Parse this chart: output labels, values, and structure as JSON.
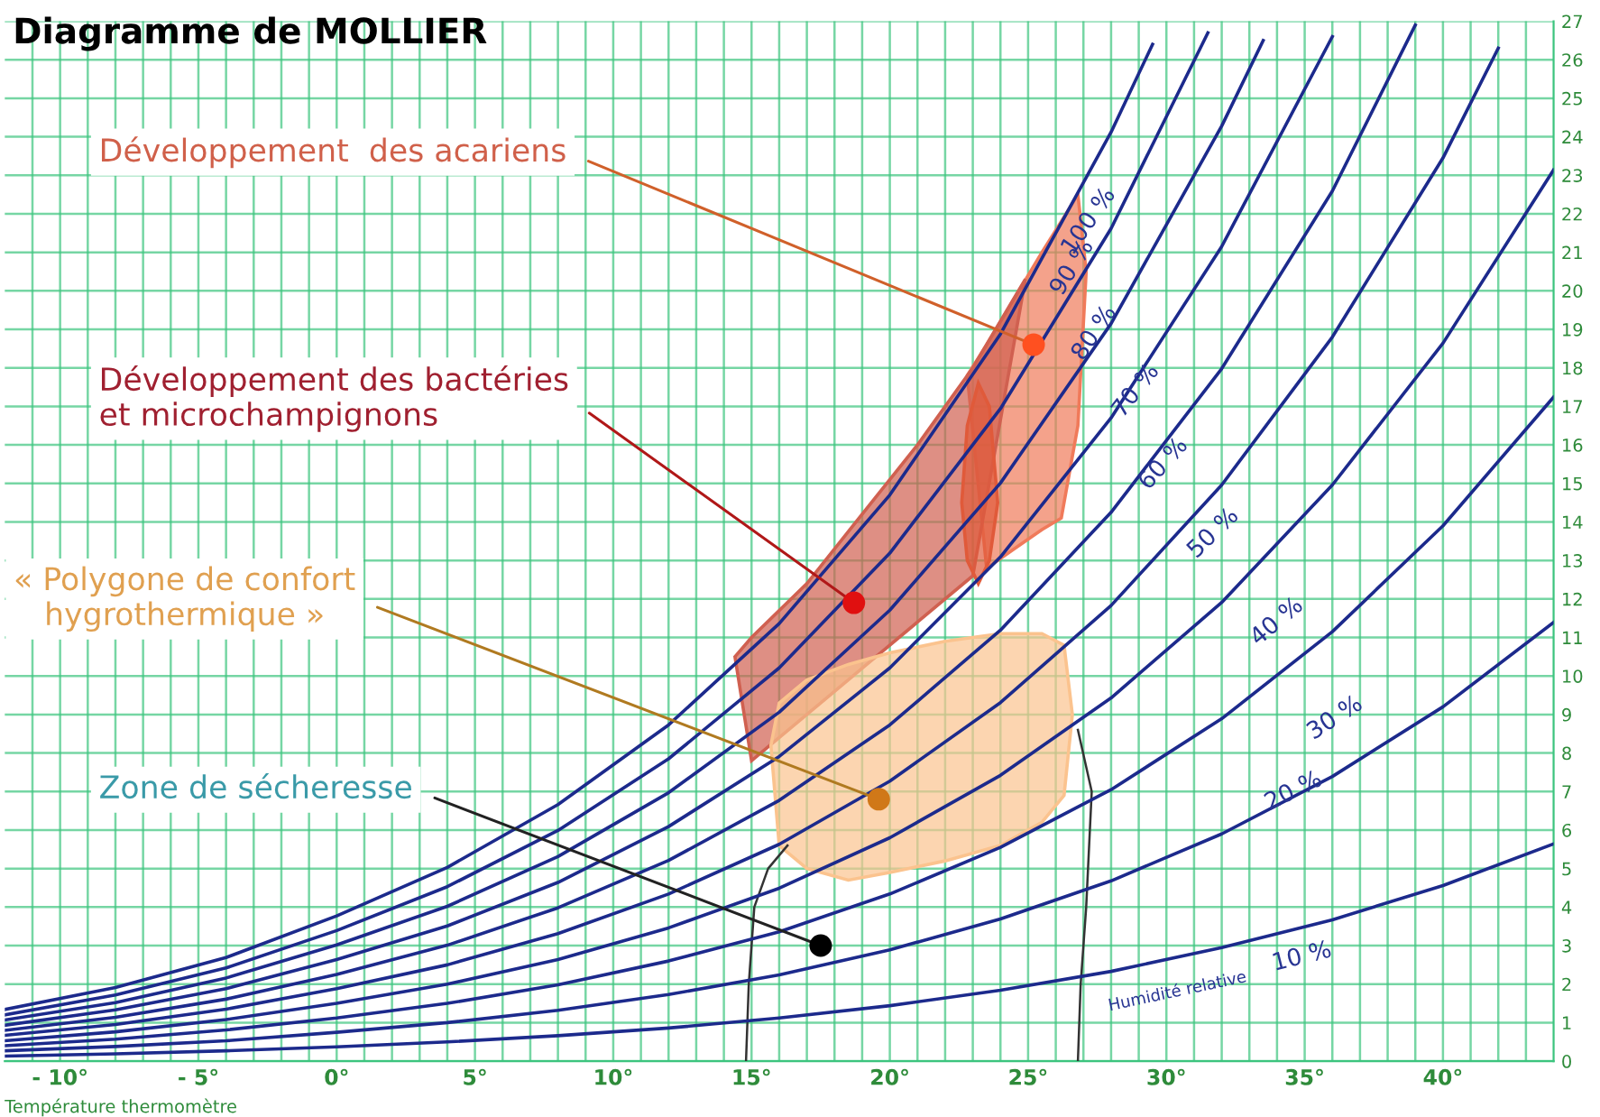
{
  "chart_data": {
    "type": "line",
    "title": "Diagramme de MOLLIER",
    "xlabel": "Température thermomètre",
    "xlim": [
      -12,
      44
    ],
    "ylim": [
      0,
      27
    ],
    "grid": true,
    "xticks": [
      {
        "value": -11,
        "label": null
      },
      {
        "value": -10,
        "label": "- 10°"
      },
      {
        "value": -9,
        "label": null
      },
      {
        "value": -8,
        "label": null
      },
      {
        "value": -7,
        "label": null
      },
      {
        "value": -6,
        "label": null
      },
      {
        "value": -5,
        "label": "- 5°"
      },
      {
        "value": -4,
        "label": null
      },
      {
        "value": -3,
        "label": null
      },
      {
        "value": -2,
        "label": null
      },
      {
        "value": -1,
        "label": null
      },
      {
        "value": 0,
        "label": "0°"
      },
      {
        "value": 1,
        "label": null
      },
      {
        "value": 2,
        "label": null
      },
      {
        "value": 3,
        "label": null
      },
      {
        "value": 4,
        "label": null
      },
      {
        "value": 5,
        "label": "5°"
      },
      {
        "value": 6,
        "label": null
      },
      {
        "value": 7,
        "label": null
      },
      {
        "value": 8,
        "label": null
      },
      {
        "value": 9,
        "label": null
      },
      {
        "value": 10,
        "label": "10°"
      },
      {
        "value": 11,
        "label": null
      },
      {
        "value": 12,
        "label": null
      },
      {
        "value": 13,
        "label": null
      },
      {
        "value": 14,
        "label": null
      },
      {
        "value": 15,
        "label": "15°"
      },
      {
        "value": 16,
        "label": null
      },
      {
        "value": 17,
        "label": null
      },
      {
        "value": 18,
        "label": null
      },
      {
        "value": 19,
        "label": null
      },
      {
        "value": 20,
        "label": "20°"
      },
      {
        "value": 21,
        "label": null
      },
      {
        "value": 22,
        "label": null
      },
      {
        "value": 23,
        "label": null
      },
      {
        "value": 24,
        "label": null
      },
      {
        "value": 25,
        "label": "25°"
      },
      {
        "value": 26,
        "label": null
      },
      {
        "value": 27,
        "label": null
      },
      {
        "value": 28,
        "label": null
      },
      {
        "value": 29,
        "label": null
      },
      {
        "value": 30,
        "label": "30°"
      },
      {
        "value": 31,
        "label": null
      },
      {
        "value": 32,
        "label": null
      },
      {
        "value": 33,
        "label": null
      },
      {
        "value": 34,
        "label": null
      },
      {
        "value": 35,
        "label": "35°"
      },
      {
        "value": 36,
        "label": null
      },
      {
        "value": 37,
        "label": null
      },
      {
        "value": 38,
        "label": null
      },
      {
        "value": 39,
        "label": null
      },
      {
        "value": 40,
        "label": "40°"
      },
      {
        "value": 41,
        "label": null
      },
      {
        "value": 42,
        "label": null
      },
      {
        "value": 43,
        "label": null
      }
    ],
    "yticks": [
      0,
      1,
      2,
      3,
      4,
      5,
      6,
      7,
      8,
      9,
      10,
      11,
      12,
      13,
      14,
      15,
      16,
      17,
      18,
      19,
      20,
      21,
      22,
      23,
      24,
      25,
      26,
      27
    ],
    "series": [
      {
        "type": "area",
        "color": "#f07a5a",
        "x": [
          22.8,
          23.5,
          24.5,
          25.5,
          26.2,
          26.8,
          27.1,
          26.8,
          26.2,
          25.5,
          24.5,
          23.5
        ],
        "values": [
          17.8,
          18.6,
          19.8,
          21.0,
          21.8,
          22.5,
          20.5,
          16.5,
          14.1,
          13.8,
          13.3,
          12.8
        ]
      },
      {
        "type": "area",
        "color": "#d06050",
        "x": [
          14.4,
          15,
          17,
          19,
          21,
          23,
          24.9,
          23,
          21,
          19,
          17,
          15
        ],
        "values": [
          10.5,
          11.0,
          12.4,
          14.2,
          16.0,
          18.0,
          20.3,
          12.6,
          11.4,
          10.2,
          9.0,
          7.8
        ]
      },
      {
        "type": "area",
        "color": "#e05a3a",
        "x": [
          22.6,
          22.8,
          23.2,
          23.6,
          23.9,
          23.6,
          23.2,
          22.8
        ],
        "values": [
          14.5,
          16.5,
          17.6,
          17.0,
          14.5,
          13.0,
          12.4,
          13.0
        ]
      },
      {
        "type": "area",
        "color": "#fbc38e",
        "x": [
          15.7,
          16.0,
          17,
          18.5,
          20,
          22,
          24,
          25.5,
          26.3,
          26.6,
          26.3,
          25.5,
          24,
          22,
          20,
          18.5,
          17,
          16.0
        ],
        "values": [
          8.2,
          9.3,
          9.9,
          10.3,
          10.6,
          10.9,
          11.1,
          11.1,
          10.8,
          9.0,
          6.9,
          6.2,
          5.6,
          5.2,
          4.9,
          4.7,
          5.0,
          5.6
        ]
      },
      {
        "color": "#333333",
        "x": [
          14.8,
          14.9,
          15.1,
          15.6,
          16.3
        ],
        "values": [
          0,
          2.0,
          4.0,
          5.0,
          5.6
        ]
      },
      {
        "color": "#333333",
        "x": [
          26.8,
          26.9,
          27.1,
          27.3,
          26.8
        ],
        "values": [
          0,
          2.0,
          4.0,
          7.0,
          8.6
        ]
      },
      {
        "type": "line",
        "color": "#1c2a8c",
        "x": [
          -12,
          -8,
          -4,
          0,
          4,
          8,
          12,
          16,
          20,
          24,
          28,
          29.5
        ],
        "values": [
          1.34,
          1.91,
          2.69,
          3.77,
          5.03,
          6.66,
          8.73,
          11.36,
          14.7,
          18.88,
          24.12,
          26.4
        ]
      },
      {
        "type": "line",
        "color": "#1c2a8c",
        "x": [
          -12,
          -8,
          -4,
          0,
          4,
          8,
          12,
          16,
          20,
          24,
          28,
          31.5
        ],
        "values": [
          1.2,
          1.72,
          2.42,
          3.39,
          4.53,
          5.99,
          7.85,
          10.21,
          13.19,
          16.94,
          21.62,
          26.7
        ]
      },
      {
        "type": "line",
        "color": "#1c2a8c",
        "x": [
          -12,
          -8,
          -4,
          0,
          4,
          8,
          12,
          16,
          20,
          24,
          28,
          32,
          33.5
        ],
        "values": [
          1.07,
          1.52,
          2.16,
          3.02,
          4.02,
          5.31,
          6.97,
          9.06,
          11.71,
          15.01,
          19.15,
          24.28,
          26.5
        ]
      },
      {
        "type": "line",
        "color": "#1c2a8c",
        "x": [
          -12,
          -8,
          -4,
          0,
          4,
          8,
          12,
          16,
          20,
          24,
          28,
          32,
          36
        ],
        "values": [
          0.93,
          1.33,
          1.88,
          2.64,
          3.51,
          4.64,
          6.09,
          7.91,
          10.21,
          13.09,
          16.7,
          21.15,
          26.6
        ]
      },
      {
        "type": "line",
        "color": "#1c2a8c",
        "x": [
          -12,
          -8,
          -4,
          0,
          4,
          8,
          12,
          16,
          20,
          24,
          28,
          32,
          36,
          39
        ],
        "values": [
          0.8,
          1.14,
          1.61,
          2.25,
          3.01,
          3.98,
          5.21,
          6.77,
          8.73,
          11.19,
          14.25,
          17.98,
          22.59,
          26.9
        ]
      },
      {
        "type": "line",
        "color": "#1c2a8c",
        "x": [
          -12,
          -8,
          -4,
          0,
          4,
          8,
          12,
          16,
          20,
          24,
          28,
          32,
          36,
          40,
          42
        ],
        "values": [
          0.67,
          0.95,
          1.35,
          1.88,
          2.5,
          3.31,
          4.34,
          5.63,
          7.27,
          9.31,
          11.83,
          14.96,
          18.8,
          23.45,
          26.3
        ]
      },
      {
        "type": "line",
        "color": "#1c2a8c",
        "x": [
          -12,
          -8,
          -4,
          0,
          4,
          8,
          12,
          16,
          20,
          24,
          28,
          32,
          36,
          40,
          44
        ],
        "values": [
          0.53,
          0.76,
          1.08,
          1.5,
          2.0,
          2.64,
          3.46,
          4.49,
          5.8,
          7.42,
          9.43,
          11.91,
          14.96,
          18.64,
          23.14
        ]
      },
      {
        "type": "line",
        "color": "#1c2a8c",
        "x": [
          -12,
          -8,
          -4,
          0,
          4,
          8,
          12,
          16,
          20,
          24,
          28,
          32,
          36,
          40,
          44
        ],
        "values": [
          0.4,
          0.57,
          0.81,
          1.12,
          1.5,
          1.98,
          2.6,
          3.36,
          4.34,
          5.55,
          7.05,
          8.89,
          11.15,
          13.9,
          17.24
        ]
      },
      {
        "type": "line",
        "color": "#1c2a8c",
        "x": [
          -12,
          -8,
          -4,
          0,
          4,
          8,
          12,
          16,
          20,
          24,
          28,
          32,
          36,
          40,
          44
        ],
        "values": [
          0.27,
          0.38,
          0.53,
          0.75,
          1.0,
          1.32,
          1.73,
          2.24,
          2.89,
          3.69,
          4.68,
          5.9,
          7.39,
          9.2,
          11.39
        ]
      },
      {
        "type": "line",
        "color": "#1c2a8c",
        "x": [
          -12,
          -8,
          -4,
          0,
          4,
          8,
          12,
          16,
          20,
          24,
          28,
          32,
          36,
          40,
          44
        ],
        "values": [
          0.13,
          0.19,
          0.27,
          0.37,
          0.5,
          0.66,
          0.86,
          1.12,
          1.44,
          1.84,
          2.33,
          2.95,
          3.67,
          4.56,
          5.64
        ]
      }
    ],
    "annotations": [
      {
        "text": "Développement  des acariens",
        "x": 25.2,
        "y": 18.6
      },
      {
        "text": "Développement des bactéries\net microchampignons",
        "x": 18.7,
        "y": 11.9
      },
      {
        "text": "« Polygone de confort\nhygrothermique »",
        "x": 19.6,
        "y": 6.8
      },
      {
        "text": "Zone de sécheresse",
        "x": 17.5,
        "y": 3.0
      },
      "100 %",
      "90 %",
      "80 %",
      "70 %",
      "60 %",
      "50 %",
      "40 %",
      "30 %",
      "20 %",
      "10 %",
      "Humidité relative"
    ]
  }
}
